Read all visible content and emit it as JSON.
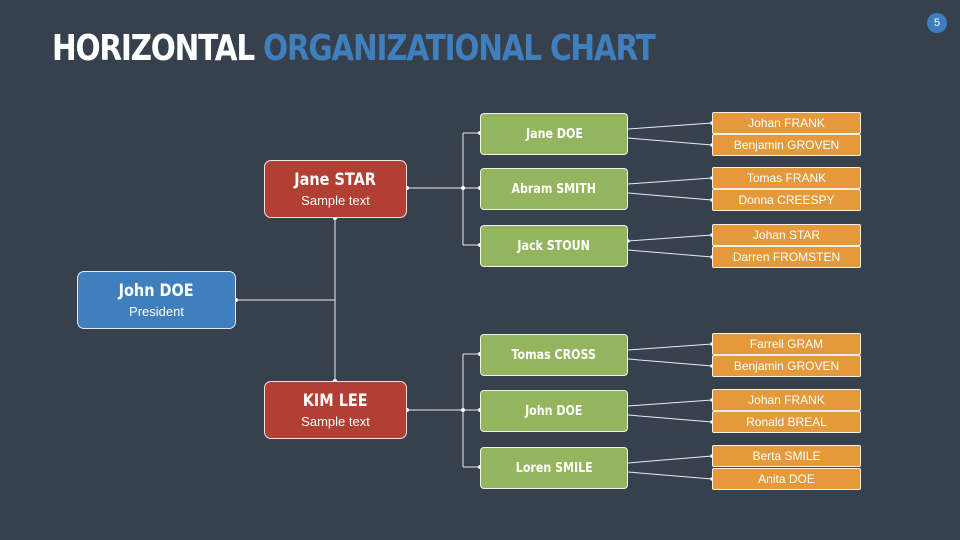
{
  "slide": {
    "title_white": "HORIZONTAL",
    "title_blue": "ORGANIZATIONAL CHART",
    "page_number": "5",
    "colors": {
      "background": "#36414d",
      "accent_blue": "#3f7fbd",
      "manager_red": "#b23f33",
      "team_green": "#94b55d",
      "member_orange": "#e49a3a"
    }
  },
  "org": {
    "root": {
      "name": "John DOE",
      "title": "President"
    },
    "managers": [
      {
        "name": "Jane STAR",
        "title": "Sample text",
        "teams": [
          {
            "name": "Jane DOE",
            "members": [
              "Johan FRANK",
              "Benjamin GROVEN"
            ]
          },
          {
            "name": "Abram SMITH",
            "members": [
              "Tomas FRANK",
              "Donna CREESPY"
            ]
          },
          {
            "name": "Jack STOUN",
            "members": [
              "Johan STAR",
              "Darren FROMSTEN"
            ]
          }
        ]
      },
      {
        "name": "KIM LEE",
        "title": "Sample text",
        "teams": [
          {
            "name": "Tomas CROSS",
            "members": [
              "Farrell GRAM",
              "Benjamin GROVEN"
            ]
          },
          {
            "name": "John DOE",
            "members": [
              "Johan FRANK",
              "Ronald BREAL"
            ]
          },
          {
            "name": "Loren SMILE",
            "members": [
              "Berta SMILE",
              "Anita DOE"
            ]
          }
        ]
      }
    ]
  }
}
